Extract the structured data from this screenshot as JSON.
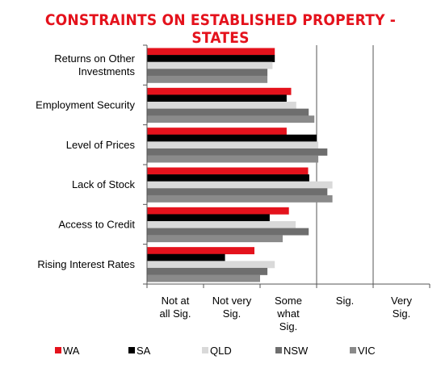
{
  "title": "CONSTRAINTS ON ESTABLISHED PROPERTY - STATES",
  "colors": {
    "title": "#e4121c",
    "WA": "#e4121c",
    "SA": "#000000",
    "QLD": "#d9d9d9",
    "NSW": "#6e6e6e",
    "VIC": "#8a8a8a",
    "gridline": "#555555",
    "axis": "#555555"
  },
  "chart_data": {
    "type": "bar",
    "orientation": "horizontal",
    "categories": [
      "Returns on Other Investments",
      "Employment Security",
      "Level of Prices",
      "Lack of Stock",
      "Access to Credit",
      "Rising Interest Rates"
    ],
    "series": [
      {
        "name": "WA",
        "values": [
          2.26,
          2.55,
          2.47,
          2.85,
          2.51,
          1.9
        ]
      },
      {
        "name": "SA",
        "values": [
          2.26,
          2.47,
          3.0,
          2.87,
          2.17,
          1.38
        ]
      },
      {
        "name": "QLD",
        "values": [
          2.22,
          2.64,
          3.03,
          3.28,
          2.63,
          2.26
        ]
      },
      {
        "name": "NSW",
        "values": [
          2.13,
          2.86,
          3.19,
          3.19,
          2.86,
          2.13
        ]
      },
      {
        "name": "VIC",
        "values": [
          2.13,
          2.96,
          3.03,
          3.28,
          2.4,
          2.0
        ]
      }
    ],
    "xlim": [
      0,
      5
    ],
    "x_tick_labels": [
      "Not at all Sig.",
      "Not very Sig.",
      "Some what Sig.",
      "Sig.",
      "Very Sig."
    ],
    "grid": "vertical gridlines at 3 and 4",
    "legend": "bottom"
  }
}
